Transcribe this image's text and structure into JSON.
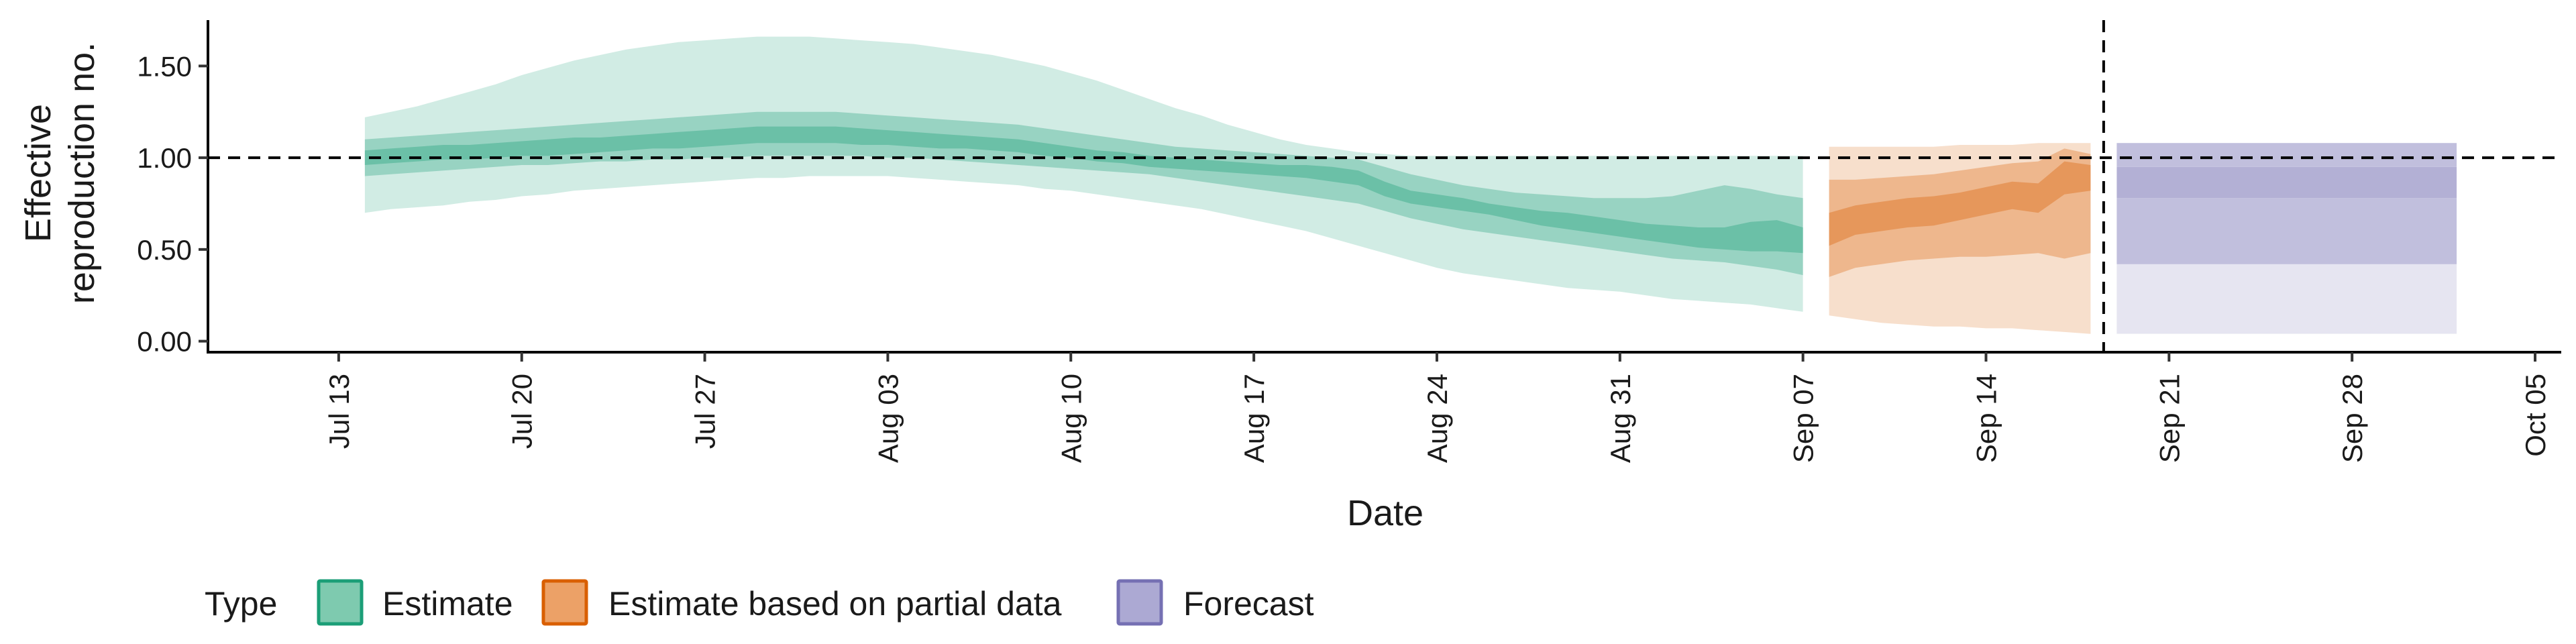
{
  "chart_data": {
    "type": "area",
    "xlabel": "Date",
    "ylabel_lines": [
      "Effective",
      "reproduction no."
    ],
    "ylim": [
      -0.06,
      1.75
    ],
    "y_ticks": [
      0.0,
      0.5,
      1.0,
      1.5
    ],
    "y_tick_labels": [
      "0.00",
      "0.50",
      "1.00",
      "1.50"
    ],
    "x_range": [
      "2020-07-08",
      "2020-10-06"
    ],
    "x_ticks": [
      "2020-07-13",
      "2020-07-20",
      "2020-07-27",
      "2020-08-03",
      "2020-08-10",
      "2020-08-17",
      "2020-08-24",
      "2020-08-31",
      "2020-09-07",
      "2020-09-14",
      "2020-09-21",
      "2020-09-28",
      "2020-10-05"
    ],
    "x_tick_labels": [
      "Jul 13",
      "Jul 20",
      "Jul 27",
      "Aug 03",
      "Aug 10",
      "Aug 17",
      "Aug 24",
      "Aug 31",
      "Sep 07",
      "Sep 14",
      "Sep 21",
      "Sep 28",
      "Oct 05"
    ],
    "reference_lines": {
      "hline_y": 1.0,
      "vline_x": "2020-09-18"
    },
    "grid": false,
    "legend": {
      "title": "Type",
      "position": "bottom-left",
      "entries": [
        {
          "label": "Estimate",
          "color": "#1b9e77"
        },
        {
          "label": "Estimate based on partial data",
          "color": "#d95f02"
        },
        {
          "label": "Forecast",
          "color": "#7570b3"
        }
      ]
    },
    "series": [
      {
        "name": "Estimate",
        "color": "#1b9e77",
        "x": [
          "2020-07-14",
          "2020-07-15",
          "2020-07-16",
          "2020-07-17",
          "2020-07-18",
          "2020-07-19",
          "2020-07-20",
          "2020-07-21",
          "2020-07-22",
          "2020-07-23",
          "2020-07-24",
          "2020-07-25",
          "2020-07-26",
          "2020-07-27",
          "2020-07-28",
          "2020-07-29",
          "2020-07-30",
          "2020-07-31",
          "2020-08-01",
          "2020-08-02",
          "2020-08-03",
          "2020-08-04",
          "2020-08-05",
          "2020-08-06",
          "2020-08-07",
          "2020-08-08",
          "2020-08-09",
          "2020-08-10",
          "2020-08-11",
          "2020-08-12",
          "2020-08-13",
          "2020-08-14",
          "2020-08-15",
          "2020-08-16",
          "2020-08-17",
          "2020-08-18",
          "2020-08-19",
          "2020-08-20",
          "2020-08-21",
          "2020-08-22",
          "2020-08-23",
          "2020-08-24",
          "2020-08-25",
          "2020-08-26",
          "2020-08-27",
          "2020-08-28",
          "2020-08-29",
          "2020-08-30",
          "2020-08-31",
          "2020-09-01",
          "2020-09-02",
          "2020-09-03",
          "2020-09-04",
          "2020-09-05",
          "2020-09-06",
          "2020-09-07"
        ],
        "lower90": [
          0.7,
          0.72,
          0.73,
          0.74,
          0.76,
          0.77,
          0.79,
          0.8,
          0.82,
          0.83,
          0.84,
          0.85,
          0.86,
          0.87,
          0.88,
          0.89,
          0.89,
          0.9,
          0.9,
          0.9,
          0.9,
          0.89,
          0.88,
          0.87,
          0.86,
          0.85,
          0.83,
          0.82,
          0.8,
          0.78,
          0.76,
          0.74,
          0.72,
          0.69,
          0.66,
          0.63,
          0.6,
          0.56,
          0.52,
          0.48,
          0.44,
          0.4,
          0.37,
          0.35,
          0.33,
          0.31,
          0.29,
          0.28,
          0.27,
          0.25,
          0.23,
          0.22,
          0.21,
          0.2,
          0.18,
          0.16
        ],
        "upper90": [
          1.22,
          1.25,
          1.28,
          1.32,
          1.36,
          1.4,
          1.45,
          1.49,
          1.53,
          1.56,
          1.59,
          1.61,
          1.63,
          1.64,
          1.65,
          1.66,
          1.66,
          1.66,
          1.65,
          1.64,
          1.63,
          1.62,
          1.6,
          1.58,
          1.56,
          1.53,
          1.5,
          1.46,
          1.42,
          1.37,
          1.32,
          1.27,
          1.23,
          1.18,
          1.14,
          1.1,
          1.07,
          1.05,
          1.03,
          1.02,
          1.01,
          1.01,
          1.01,
          1.01,
          1.01,
          1.01,
          1.01,
          1.01,
          1.01,
          1.01,
          1.01,
          1.01,
          1.01,
          1.01,
          1.01,
          1.01
        ],
        "lower50": [
          0.9,
          0.91,
          0.92,
          0.93,
          0.94,
          0.95,
          0.96,
          0.96,
          0.97,
          0.98,
          0.98,
          0.99,
          0.99,
          1.0,
          1.0,
          1.01,
          1.01,
          1.01,
          1.01,
          1.01,
          1.0,
          1.0,
          0.99,
          0.98,
          0.97,
          0.96,
          0.95,
          0.94,
          0.93,
          0.92,
          0.91,
          0.89,
          0.87,
          0.85,
          0.83,
          0.81,
          0.79,
          0.77,
          0.75,
          0.71,
          0.67,
          0.64,
          0.61,
          0.59,
          0.57,
          0.55,
          0.53,
          0.51,
          0.49,
          0.47,
          0.45,
          0.44,
          0.43,
          0.41,
          0.39,
          0.36
        ],
        "upper50": [
          1.1,
          1.11,
          1.12,
          1.13,
          1.14,
          1.15,
          1.16,
          1.17,
          1.18,
          1.19,
          1.2,
          1.21,
          1.22,
          1.23,
          1.24,
          1.25,
          1.25,
          1.25,
          1.25,
          1.24,
          1.23,
          1.22,
          1.21,
          1.2,
          1.19,
          1.18,
          1.16,
          1.14,
          1.12,
          1.1,
          1.08,
          1.06,
          1.05,
          1.04,
          1.03,
          1.02,
          1.01,
          1.0,
          0.99,
          0.95,
          0.91,
          0.88,
          0.85,
          0.83,
          0.81,
          0.8,
          0.79,
          0.78,
          0.78,
          0.78,
          0.79,
          0.82,
          0.85,
          0.83,
          0.8,
          0.78
        ],
        "lower20": [
          0.96,
          0.97,
          0.98,
          0.99,
          0.99,
          1.0,
          1.01,
          1.01,
          1.02,
          1.03,
          1.04,
          1.05,
          1.05,
          1.06,
          1.07,
          1.08,
          1.08,
          1.08,
          1.08,
          1.07,
          1.07,
          1.06,
          1.05,
          1.05,
          1.04,
          1.03,
          1.01,
          1.0,
          0.98,
          0.97,
          0.95,
          0.94,
          0.93,
          0.92,
          0.91,
          0.9,
          0.89,
          0.87,
          0.85,
          0.79,
          0.75,
          0.73,
          0.71,
          0.69,
          0.66,
          0.63,
          0.61,
          0.59,
          0.57,
          0.55,
          0.53,
          0.51,
          0.5,
          0.49,
          0.49,
          0.48
        ],
        "upper20": [
          1.04,
          1.05,
          1.06,
          1.07,
          1.07,
          1.08,
          1.09,
          1.1,
          1.11,
          1.11,
          1.12,
          1.13,
          1.14,
          1.15,
          1.16,
          1.17,
          1.17,
          1.17,
          1.17,
          1.16,
          1.15,
          1.14,
          1.13,
          1.12,
          1.11,
          1.1,
          1.08,
          1.06,
          1.04,
          1.03,
          1.01,
          1.0,
          0.99,
          0.98,
          0.97,
          0.96,
          0.96,
          0.95,
          0.93,
          0.87,
          0.82,
          0.8,
          0.78,
          0.75,
          0.73,
          0.71,
          0.7,
          0.68,
          0.66,
          0.64,
          0.63,
          0.62,
          0.62,
          0.65,
          0.66,
          0.62
        ]
      },
      {
        "name": "Estimate based on partial data",
        "color": "#d95f02",
        "x": [
          "2020-09-08",
          "2020-09-09",
          "2020-09-10",
          "2020-09-11",
          "2020-09-12",
          "2020-09-13",
          "2020-09-14",
          "2020-09-15",
          "2020-09-16",
          "2020-09-17",
          "2020-09-18"
        ],
        "lower90": [
          0.14,
          0.12,
          0.1,
          0.09,
          0.08,
          0.08,
          0.07,
          0.07,
          0.06,
          0.05,
          0.04
        ],
        "upper90": [
          1.06,
          1.06,
          1.06,
          1.06,
          1.06,
          1.07,
          1.07,
          1.07,
          1.08,
          1.08,
          1.08
        ],
        "lower50": [
          0.35,
          0.4,
          0.42,
          0.44,
          0.45,
          0.46,
          0.46,
          0.47,
          0.48,
          0.45,
          0.48
        ],
        "upper50": [
          0.88,
          0.88,
          0.89,
          0.9,
          0.91,
          0.93,
          0.95,
          0.97,
          0.98,
          1.05,
          1.02
        ],
        "lower20": [
          0.52,
          0.58,
          0.6,
          0.62,
          0.63,
          0.66,
          0.69,
          0.72,
          0.7,
          0.8,
          0.82
        ],
        "upper20": [
          0.7,
          0.74,
          0.76,
          0.78,
          0.79,
          0.81,
          0.84,
          0.87,
          0.86,
          0.98,
          0.96
        ]
      },
      {
        "name": "Forecast",
        "color": "#7570b3",
        "x": [
          "2020-09-19",
          "2020-10-02"
        ],
        "lower90": [
          0.04,
          0.04
        ],
        "upper90": [
          0.42,
          0.42
        ],
        "lower50": [
          0.42,
          0.42
        ],
        "upper50": [
          0.78,
          0.78
        ],
        "lower20": [
          0.78,
          0.78
        ],
        "upper20": [
          0.95,
          0.95
        ],
        "top_band": [
          0.95,
          1.08
        ]
      }
    ]
  }
}
